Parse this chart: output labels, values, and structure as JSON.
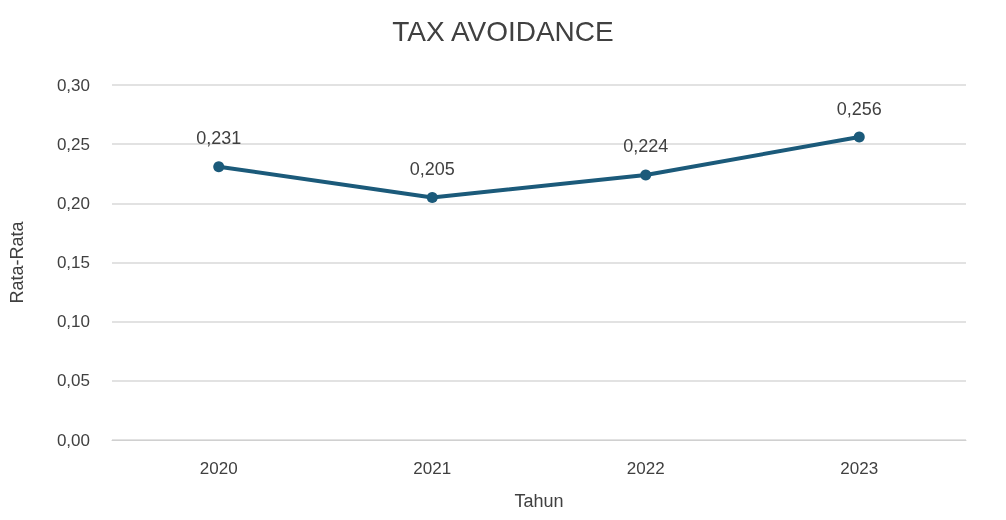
{
  "chart_data": {
    "type": "line",
    "title": "TAX AVOIDANCE",
    "xlabel": "Tahun",
    "ylabel": "Rata-Rata",
    "categories": [
      "2020",
      "2021",
      "2022",
      "2023"
    ],
    "series": [
      {
        "color": "#1b5a7a",
        "values": [
          0.231,
          0.205,
          0.224,
          0.256
        ],
        "value_labels": [
          "0,231",
          "0,205",
          "0,224",
          "0,256"
        ]
      }
    ],
    "ylim": [
      0,
      0.3
    ],
    "yticks": [
      {
        "value": 0,
        "label": "0,00"
      },
      {
        "value": 0.05,
        "label": "0,05"
      },
      {
        "value": 0.1,
        "label": "0,10"
      },
      {
        "value": 0.15,
        "label": "0,15"
      },
      {
        "value": 0.2,
        "label": "0,20"
      },
      {
        "value": 0.25,
        "label": "0,25"
      },
      {
        "value": 0.3,
        "label": "0,30"
      }
    ],
    "grid": "y",
    "marker": "circle",
    "line_style": "solid"
  }
}
